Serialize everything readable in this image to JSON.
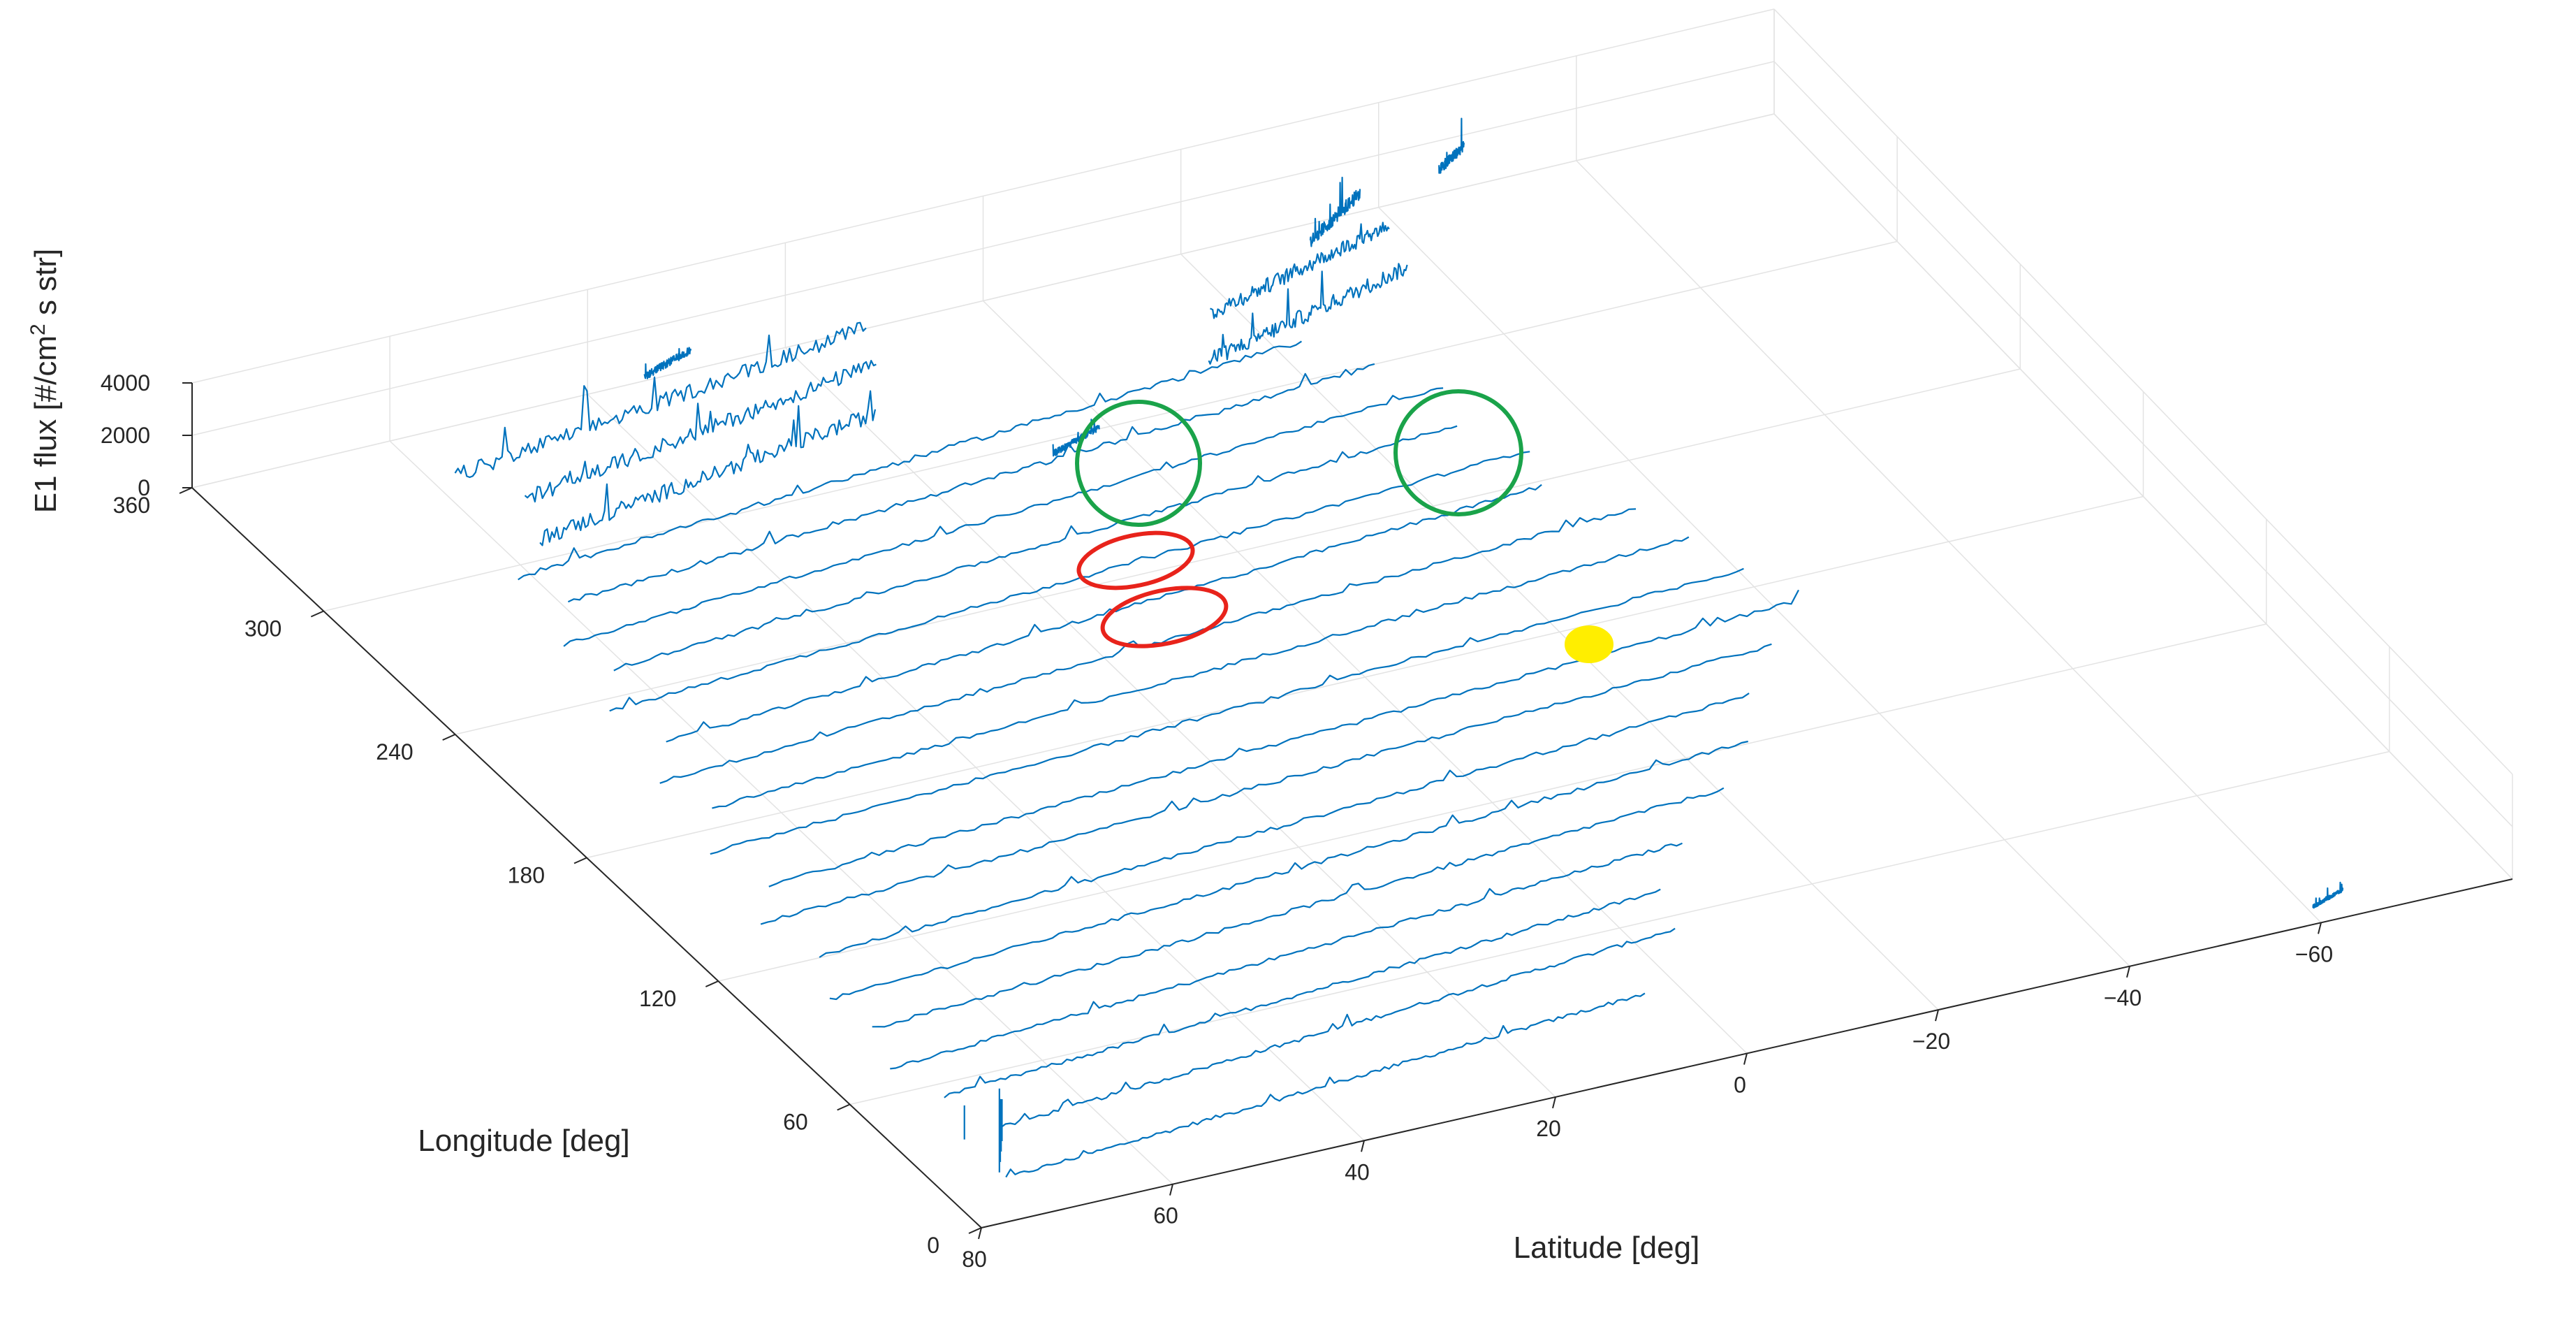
{
  "chart_data": {
    "type": "line",
    "view": "3d",
    "title": "",
    "xlabel": "Latitude [deg]",
    "ylabel": "Longitude [deg]",
    "zlabel_parts": {
      "pre": "E1 flux [#/cm",
      "sup": "2",
      "post": " s str]"
    },
    "xlim": [
      -80,
      80
    ],
    "ylim": [
      0,
      360
    ],
    "zlim": [
      0,
      4000
    ],
    "x_ticks": [
      "80",
      "60",
      "40",
      "20",
      "0",
      "−20",
      "−40",
      "−60"
    ],
    "y_ticks": [
      "0",
      "60",
      "120",
      "180",
      "240",
      "300",
      "360"
    ],
    "z_ticks": [
      "0",
      "2000",
      "4000"
    ],
    "grid": true,
    "line_color": "#0072BD",
    "highlight_colors": {
      "green": "#1aa34a",
      "red": "#e8231b",
      "yellow": "#ffee00"
    },
    "passes": [
      {
        "lat0": 74,
        "lon0": 15,
        "lat1": 4,
        "lon1": 30,
        "base": 200,
        "amp": 150
      },
      {
        "lat0": 70,
        "lon0": 35,
        "lat1": -4,
        "lon1": 52,
        "base": 220,
        "amp": 150
      },
      {
        "lat0": 72,
        "lon0": 52,
        "lat1": -6,
        "lon1": 68,
        "base": 240,
        "amp": 150
      },
      {
        "lat0": 74,
        "lon0": 68,
        "lat1": -12,
        "lon1": 85,
        "base": 230,
        "amp": 150
      },
      {
        "lat0": 72,
        "lon0": 85,
        "lat1": -20,
        "lon1": 102,
        "base": 230,
        "amp": 150
      },
      {
        "lat0": 73,
        "lon0": 100,
        "lat1": -26,
        "lon1": 118,
        "base": 240,
        "amp": 150
      },
      {
        "lat0": 70,
        "lon0": 118,
        "lat1": -30,
        "lon1": 136,
        "base": 240,
        "amp": 150
      },
      {
        "lat0": 72,
        "lon0": 136,
        "lat1": -36,
        "lon1": 153,
        "base": 250,
        "amp": 150
      },
      {
        "lat0": 68,
        "lon0": 150,
        "lat1": -42,
        "lon1": 168,
        "base": 250,
        "amp": 150
      },
      {
        "lat0": 70,
        "lon0": 168,
        "lat1": -40,
        "lon1": 185,
        "base": 250,
        "amp": 150
      },
      {
        "lat0": 66,
        "lon0": 185,
        "lat1": -38,
        "lon1": 202,
        "base": 260,
        "amp": 150
      },
      {
        "lat0": 68,
        "lon0": 200,
        "lat1": -36,
        "lon1": 218,
        "base": 260,
        "amp": 150
      },
      {
        "lat0": 64,
        "lon0": 215,
        "lat1": -30,
        "lon1": 235,
        "base": 260,
        "amp": 150
      },
      {
        "lat0": 66,
        "lon0": 232,
        "lat1": -32,
        "lon1": 250,
        "base": 270,
        "amp": 150
      },
      {
        "lat0": 62,
        "lon0": 248,
        "lat1": -28,
        "lon1": 266,
        "base": 270,
        "amp": 150
      },
      {
        "lat0": 64,
        "lon0": 262,
        "lat1": -30,
        "lon1": 282,
        "base": 280,
        "amp": 150
      },
      {
        "lat0": 60,
        "lon0": 278,
        "lat1": -26,
        "lon1": 296,
        "base": 290,
        "amp": 200
      },
      {
        "lat0": 62,
        "lon0": 292,
        "lat1": -22,
        "lon1": 312,
        "base": 300,
        "amp": 200
      },
      {
        "lat0": 58,
        "lon0": 300,
        "lat1": 20,
        "lon1": 318,
        "base": 700,
        "amp": 600
      },
      {
        "lat0": 56,
        "lon0": 316,
        "lat1": 16,
        "lon1": 336,
        "base": 800,
        "amp": 600
      },
      {
        "lat0": 60,
        "lon0": 330,
        "lat1": 14,
        "lon1": 350,
        "base": 900,
        "amp": 600
      },
      {
        "lat0": 36,
        "lon0": 352,
        "lat1": 30,
        "lon1": 358,
        "base": 900,
        "amp": 300
      },
      {
        "lat0": -10,
        "lon0": 300,
        "lat1": -34,
        "lon1": 318,
        "base": 1500,
        "amp": 600
      },
      {
        "lat0": -14,
        "lon0": 318,
        "lat1": -36,
        "lon1": 336,
        "base": 1500,
        "amp": 600
      },
      {
        "lat0": -28,
        "lon0": 336,
        "lat1": -36,
        "lon1": 350,
        "base": 1600,
        "amp": 500
      },
      {
        "lat0": -44,
        "lon0": 350,
        "lat1": -48,
        "lon1": 357,
        "base": 1800,
        "amp": 400
      },
      {
        "lat0": 8,
        "lon0": 290,
        "lat1": 2,
        "lon1": 296,
        "base": 400,
        "amp": 250
      },
      {
        "lat0": -60,
        "lon0": 4,
        "lat1": -64,
        "lon1": 8,
        "base": 250,
        "amp": 150
      }
    ]
  }
}
